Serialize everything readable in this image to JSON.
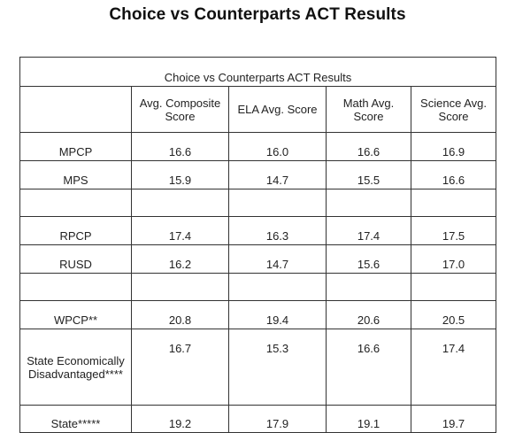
{
  "title": "Choice vs Counterparts ACT Results",
  "table": {
    "caption": "Choice vs Counterparts ACT Results",
    "columns": [
      "",
      "Avg. Composite Score",
      "ELA Avg. Score",
      "Math Avg. Score",
      "Science Avg. Score"
    ],
    "rows": [
      {
        "label": "MPCP",
        "values": [
          "16.6",
          "16.0",
          "16.6",
          "16.9"
        ]
      },
      {
        "label": "MPS",
        "values": [
          "15.9",
          "14.7",
          "15.5",
          "16.6"
        ]
      },
      {
        "label": "",
        "values": [
          "",
          "",
          "",
          ""
        ]
      },
      {
        "label": "RPCP",
        "values": [
          "17.4",
          "16.3",
          "17.4",
          "17.5"
        ]
      },
      {
        "label": "RUSD",
        "values": [
          "16.2",
          "14.7",
          "15.6",
          "17.0"
        ]
      },
      {
        "label": "",
        "values": [
          "",
          "",
          "",
          ""
        ]
      },
      {
        "label": "WPCP**",
        "values": [
          "20.8",
          "19.4",
          "20.6",
          "20.5"
        ]
      },
      {
        "label": "State Economically Disadvantaged****",
        "values": [
          "16.7",
          "15.3",
          "16.6",
          "17.4"
        ]
      },
      {
        "label": "State*****",
        "values": [
          "19.2",
          "17.9",
          "19.1",
          "19.7"
        ]
      }
    ]
  }
}
